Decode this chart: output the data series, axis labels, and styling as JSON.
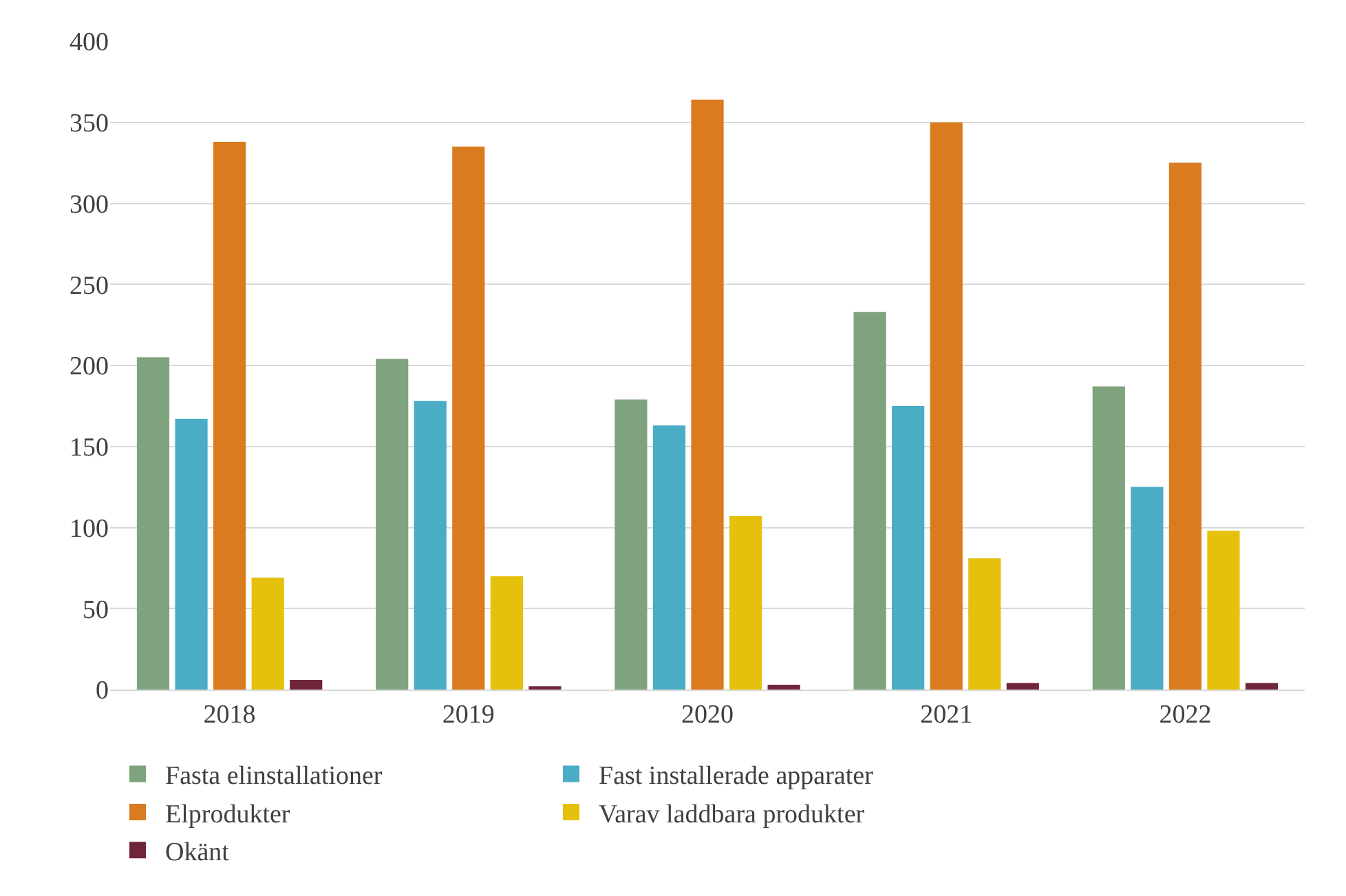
{
  "chart_data": {
    "type": "bar",
    "categories": [
      "2018",
      "2019",
      "2020",
      "2021",
      "2022"
    ],
    "series": [
      {
        "name": "Fasta elinstallationer",
        "color": "#7ea37e",
        "values": [
          205,
          204,
          179,
          233,
          187
        ]
      },
      {
        "name": "Fast installerade apparater",
        "color": "#4bacc6",
        "values": [
          167,
          178,
          163,
          175,
          125
        ]
      },
      {
        "name": "Elprodukter",
        "color": "#d97b1e",
        "values": [
          338,
          335,
          364,
          350,
          325
        ]
      },
      {
        "name": "Varav laddbara produkter",
        "color": "#e6c10c",
        "values": [
          69,
          70,
          107,
          81,
          98
        ]
      },
      {
        "name": "Okänt",
        "color": "#70263a",
        "values": [
          6,
          2,
          3,
          4,
          4
        ]
      }
    ],
    "ylim": [
      0,
      400
    ],
    "yticks": [
      0,
      50,
      100,
      150,
      200,
      250,
      300,
      350,
      400
    ],
    "grid": "y",
    "legend": "bottom"
  }
}
